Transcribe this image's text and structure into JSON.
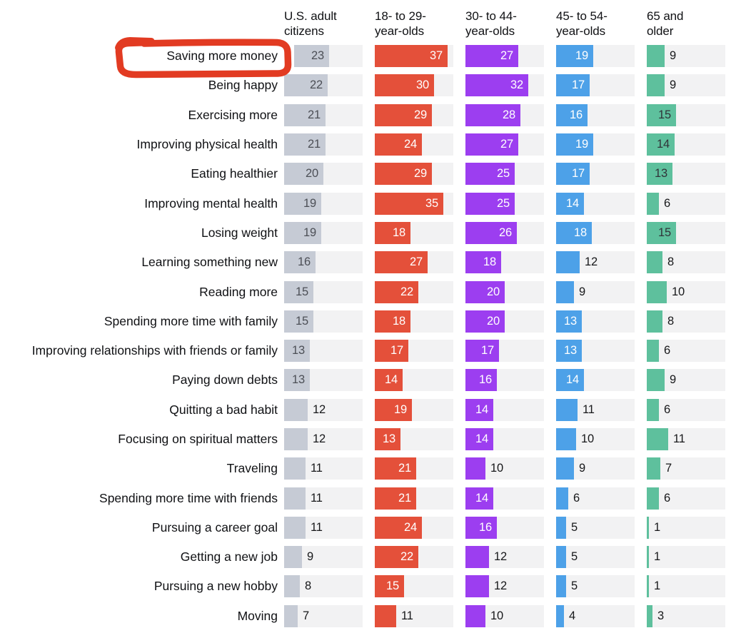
{
  "annotation": {
    "shape": "hand-drawn-marker-box",
    "target_label": "Saving more money",
    "color": "#e23b22"
  },
  "chart_data": {
    "type": "bar",
    "orientation": "horizontal",
    "value_unit": "percent",
    "value_axis_max": 40,
    "grid": false,
    "legend_position": "top-column-headers",
    "value_label_inside_threshold": 13,
    "track_color": "#f2f2f3",
    "categories": [
      "Saving more money",
      "Being happy",
      "Exercising more",
      "Improving physical health",
      "Eating healthier",
      "Improving mental health",
      "Losing weight",
      "Learning something new",
      "Reading more",
      "Spending more time with family",
      "Improving relationships with friends or family",
      "Paying down debts",
      "Quitting a bad habit",
      "Focusing on spiritual matters",
      "Traveling",
      "Spending more time with friends",
      "Pursuing a career goal",
      "Getting a new job",
      "Pursuing a new hobby",
      "Moving"
    ],
    "series": [
      {
        "name": "U.S. adult citizens",
        "header_lines": [
          "U.S. adult",
          "citizens"
        ],
        "color": "#c6cbd5",
        "value_text_inside": "#4c4f56",
        "values": [
          23,
          22,
          21,
          21,
          20,
          19,
          19,
          16,
          15,
          15,
          13,
          13,
          12,
          12,
          11,
          11,
          11,
          9,
          8,
          7
        ]
      },
      {
        "name": "18- to 29-year-olds",
        "header_lines": [
          "18- to 29-",
          "year-olds"
        ],
        "color": "#e4503a",
        "value_text_inside": "#ffffff",
        "values": [
          37,
          30,
          29,
          24,
          29,
          35,
          18,
          27,
          22,
          18,
          17,
          14,
          19,
          13,
          21,
          21,
          24,
          22,
          15,
          11
        ]
      },
      {
        "name": "30- to 44-year-olds",
        "header_lines": [
          "30- to 44-",
          "year-olds"
        ],
        "color": "#9c3ef0",
        "value_text_inside": "#ffffff",
        "values": [
          27,
          32,
          28,
          27,
          25,
          25,
          26,
          18,
          20,
          20,
          17,
          16,
          14,
          14,
          10,
          14,
          16,
          12,
          12,
          10
        ]
      },
      {
        "name": "45- to 54-year-olds",
        "header_lines": [
          "45- to 54-",
          "year-olds"
        ],
        "color": "#4da1e8",
        "value_text_inside": "#ffffff",
        "values": [
          19,
          17,
          16,
          19,
          17,
          14,
          18,
          12,
          9,
          13,
          13,
          14,
          11,
          10,
          9,
          6,
          5,
          5,
          5,
          4
        ]
      },
      {
        "name": "65 and older",
        "header_lines": [
          "65 and",
          "older"
        ],
        "color": "#5ec09d",
        "value_text_inside": "#303439",
        "values": [
          9,
          9,
          15,
          14,
          13,
          6,
          15,
          8,
          10,
          8,
          6,
          9,
          6,
          11,
          7,
          6,
          1,
          1,
          1,
          3
        ]
      }
    ]
  }
}
